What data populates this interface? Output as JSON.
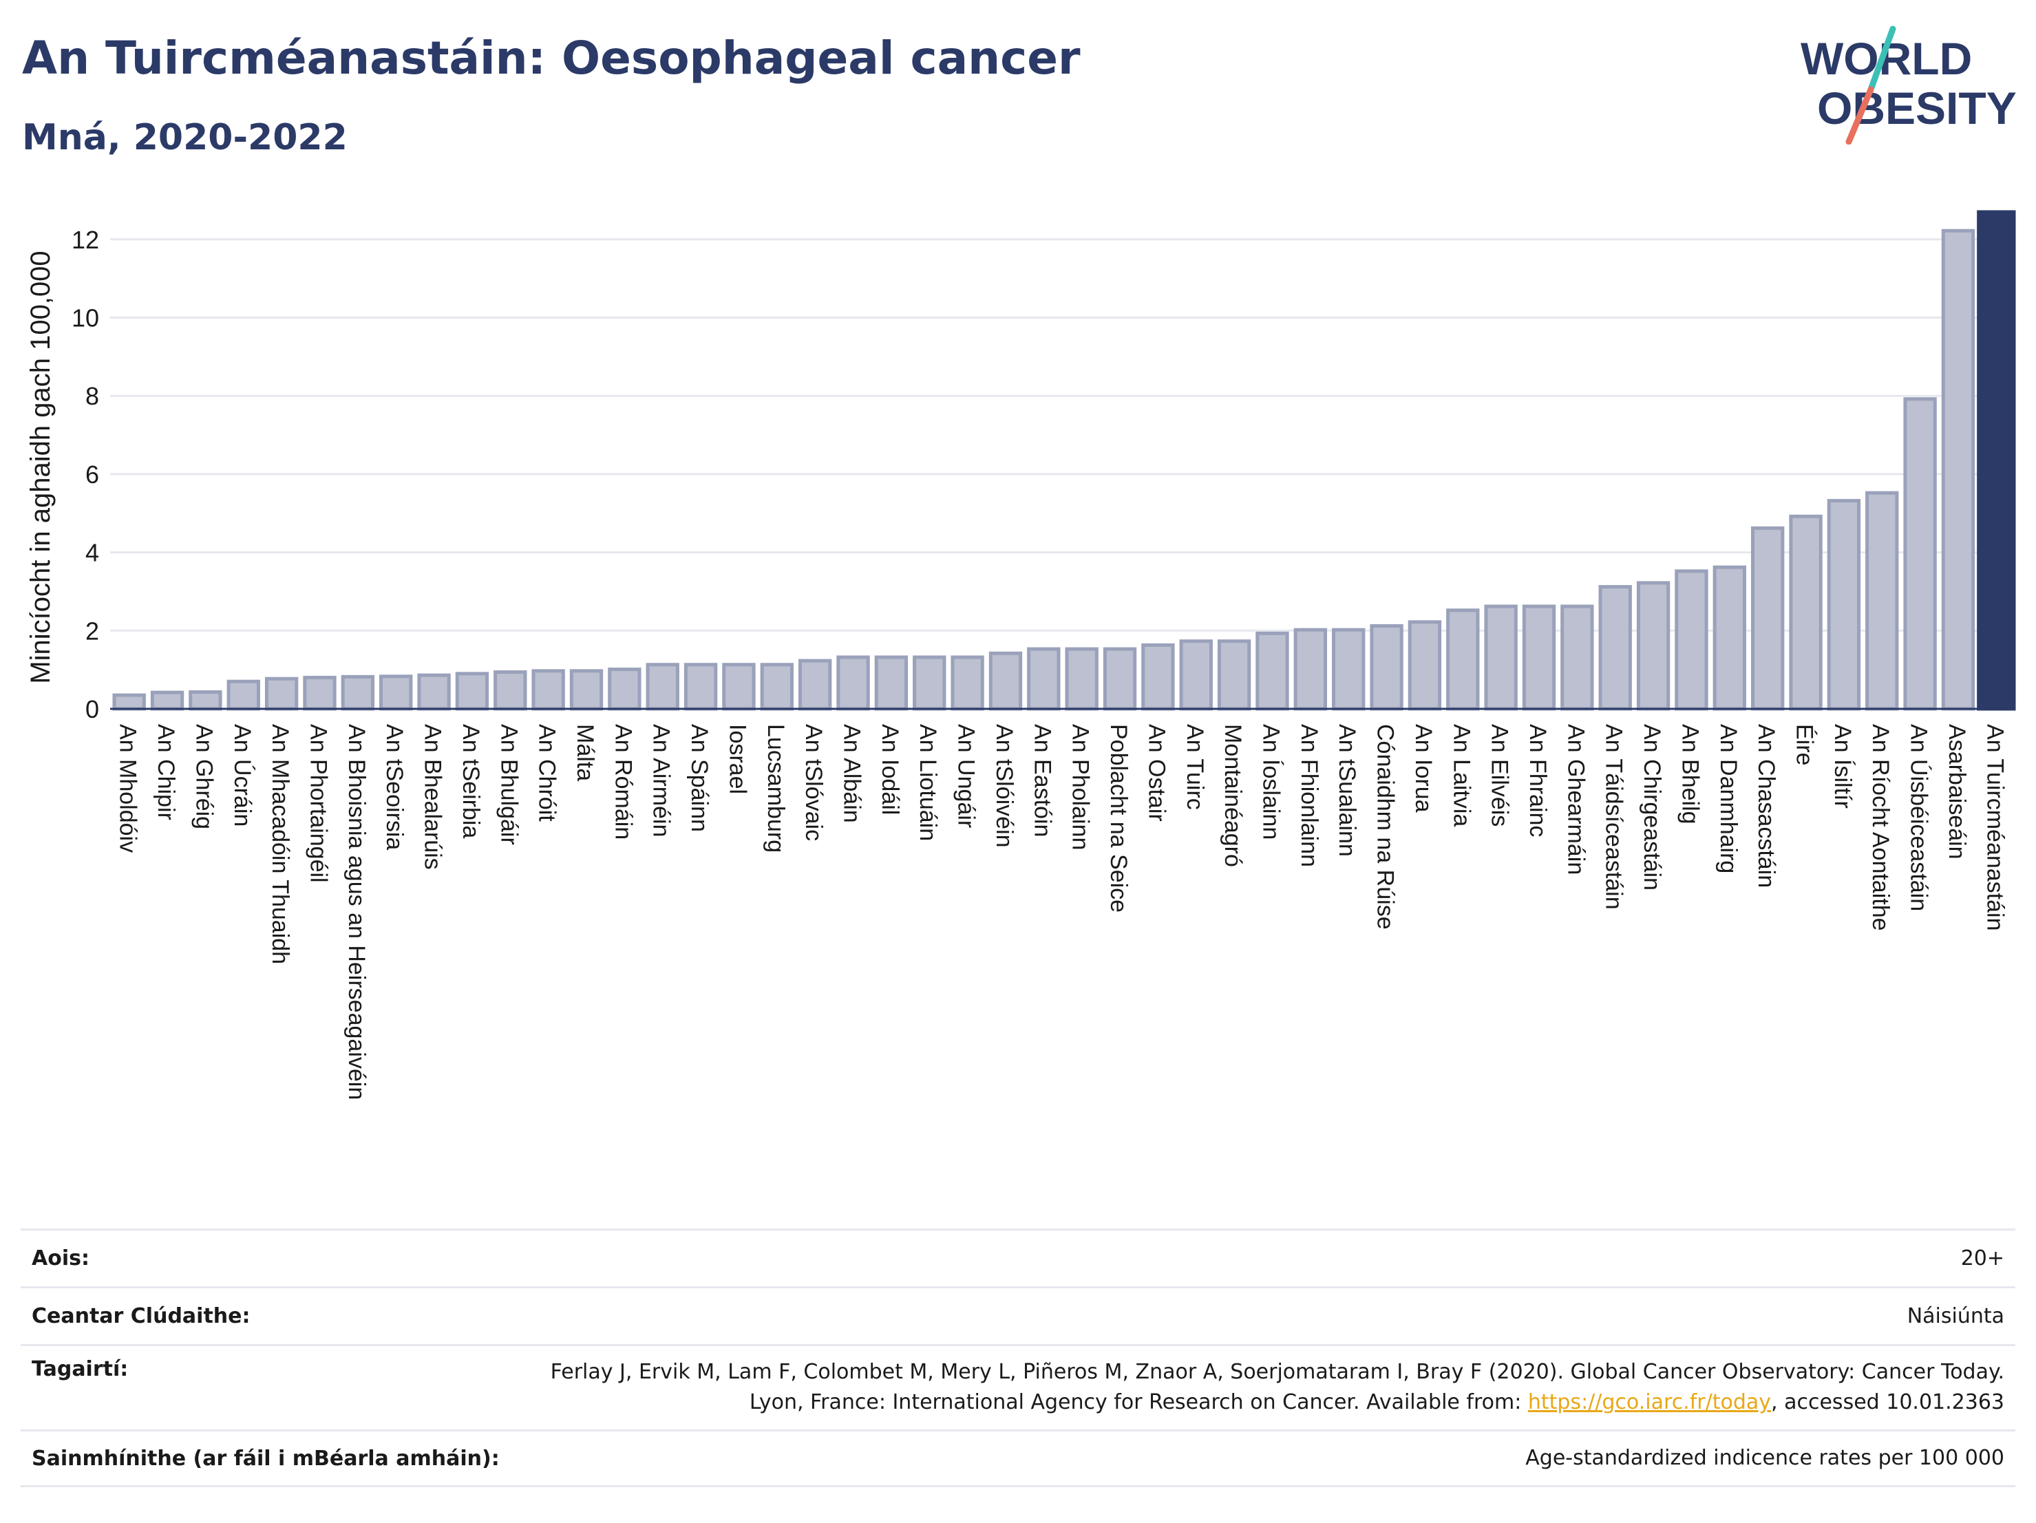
{
  "title": "An Tuircméanastáin: Oesophageal cancer",
  "subtitle": "Mná, 2020-2022",
  "logo": {
    "line1": "WORLD",
    "line2": "OBESITY"
  },
  "colors": {
    "bar": "#bcc0d0",
    "bar_stroke": "#9aa1ba",
    "highlight": "#2b3a67",
    "title": "#2b3a67",
    "link": "#e8a817"
  },
  "chart_data": {
    "type": "bar",
    "ylabel": "Minicíocht in aghaidh gach 100,000",
    "xlabel": "",
    "ylim": [
      0,
      12.7
    ],
    "yticks": [
      0,
      2,
      4,
      6,
      8,
      10,
      12
    ],
    "grid": true,
    "highlight": "An Tuircméanastáin",
    "categories": [
      "An Mholdóiv",
      "An Chipir",
      "An Ghréig",
      "An Úcráin",
      "An Mhacadóin Thuaidh",
      "An Phortaingéil",
      "An Bhoisnia agus an Heirseagaivéin",
      "An tSeoirsia",
      "An Bhealarúis",
      "An tSeirbia",
      "An Bhulgáir",
      "An Chróit",
      "Málta",
      "An Rómáin",
      "An Airméin",
      "An Spáinn",
      "Iosrael",
      "Lucsamburg",
      "An tSlóvaic",
      "An Albáin",
      "An Iodáil",
      "An Liotuáin",
      "An Ungáir",
      "An tSlóivéin",
      "An Eastóin",
      "An Pholainn",
      "Poblacht na Seice",
      "An Ostair",
      "An Tuirc",
      "Montainéagró",
      "An Íoslainn",
      "An Fhionlainn",
      "An tSualainn",
      "Cónaidhm na Rúise",
      "An Iorua",
      "An Laitvia",
      "An Eilvéis",
      "An Fhrainc",
      "An Ghearmáin",
      "An Táidsíceastáin",
      "An Chirgeastáin",
      "An Bheilg",
      "An Danmhairg",
      "An Chasacstáin",
      "Éire",
      "An Ísiltír",
      "An Ríocht Aontaithe",
      "An Úisbéiceastáin",
      "Asarbaiseáin",
      "An Tuircméanastáin"
    ],
    "values": [
      0.35,
      0.42,
      0.43,
      0.7,
      0.77,
      0.8,
      0.82,
      0.83,
      0.86,
      0.9,
      0.94,
      0.97,
      0.97,
      1.01,
      1.13,
      1.13,
      1.13,
      1.13,
      1.23,
      1.32,
      1.32,
      1.32,
      1.32,
      1.42,
      1.53,
      1.53,
      1.53,
      1.63,
      1.73,
      1.73,
      1.93,
      2.02,
      2.02,
      2.12,
      2.22,
      2.52,
      2.62,
      2.62,
      2.62,
      3.12,
      3.22,
      3.52,
      3.62,
      4.62,
      4.92,
      5.32,
      5.52,
      7.92,
      12.22,
      12.7
    ]
  },
  "footer": {
    "rows": [
      {
        "key": "Aois:",
        "value": "20+"
      },
      {
        "key": "Ceantar Clúdaithe:",
        "value": "Náisiúnta"
      },
      {
        "key": "Tagairtí:",
        "value_pre": "Ferlay J, Ervik M, Lam F, Colombet M, Mery L, Piñeros M, Znaor A, Soerjomataram I, Bray F (2020). Global Cancer Observatory: Cancer Today. Lyon, France: International Agency for Research on Cancer. Available from: ",
        "link": "https://gco.iarc.fr/today",
        "value_post": ", accessed 10.01.2363"
      },
      {
        "key": "Sainmhínithe (ar fáil i mBéarla amháin):",
        "value": "Age-standardized indicence rates per 100 000"
      }
    ]
  }
}
